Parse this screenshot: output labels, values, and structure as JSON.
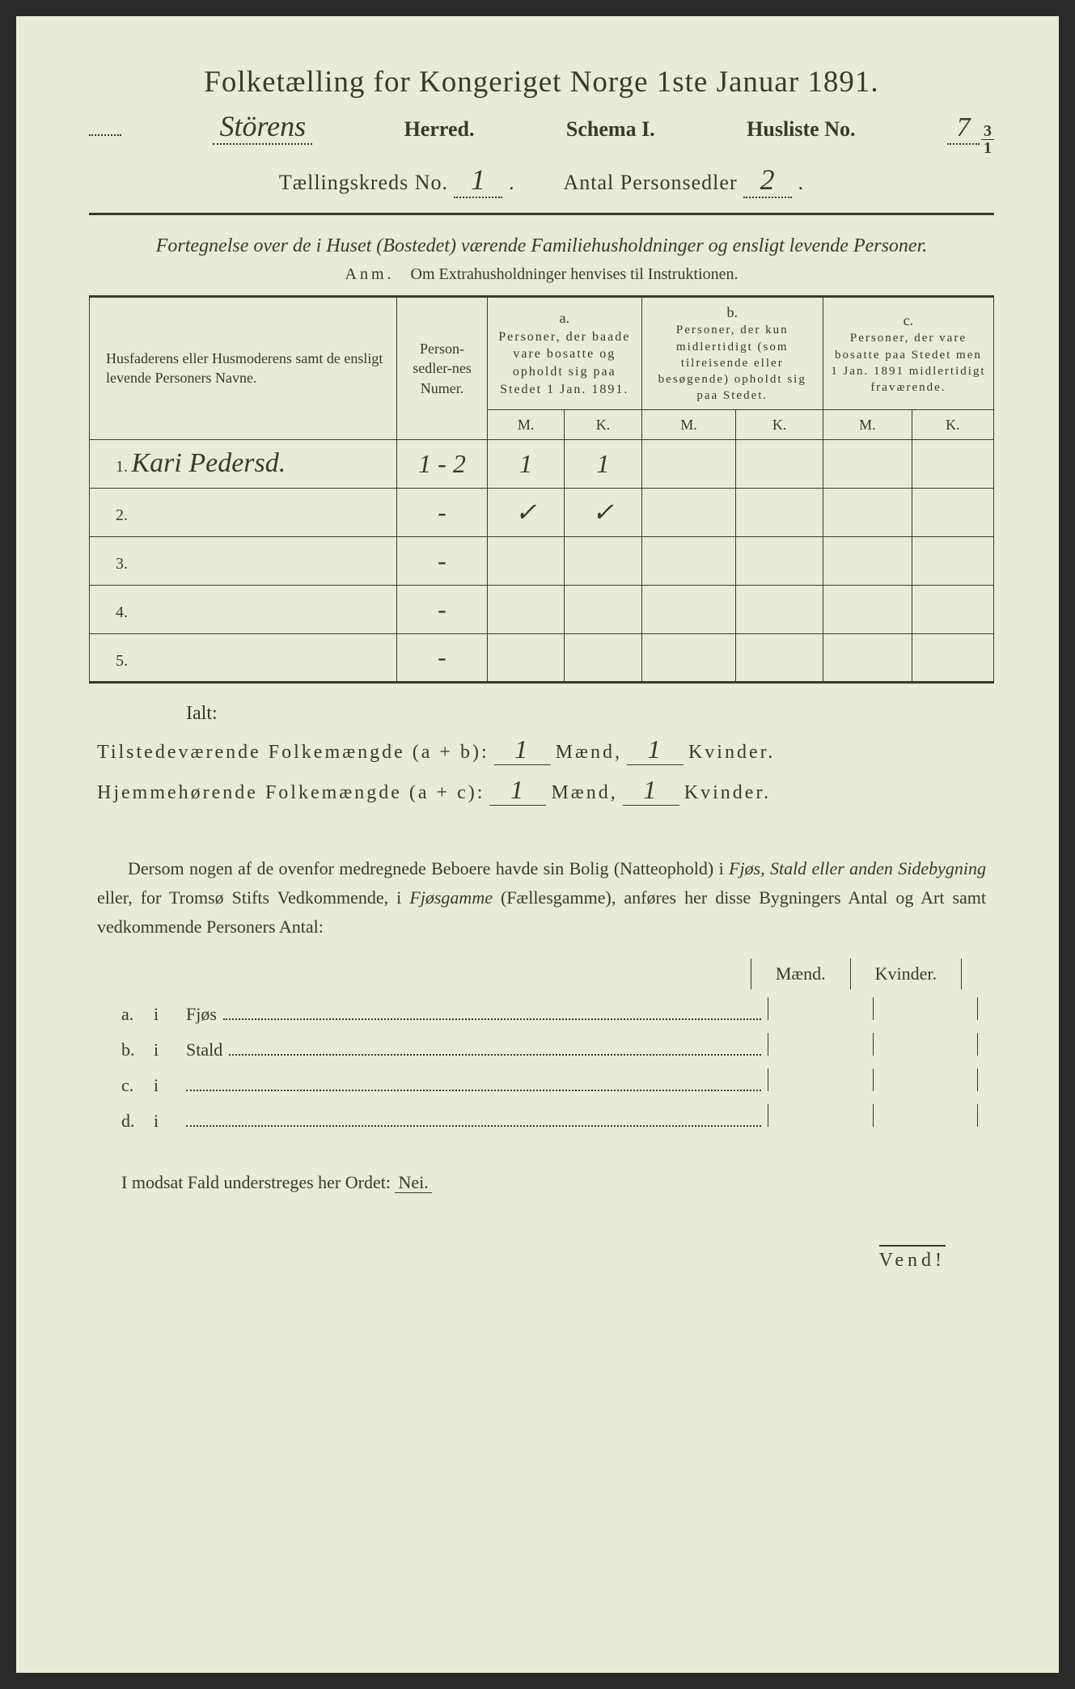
{
  "title": "Folketælling for Kongeriget Norge 1ste Januar 1891.",
  "herred_value": "Störens",
  "herred_label": "Herred.",
  "schema_label": "Schema I.",
  "husliste_label": "Husliste No.",
  "husliste_value": "7",
  "husliste_frac_num": "3",
  "husliste_frac_den": "1",
  "tkreds_label": "Tællingskreds No.",
  "tkreds_value": "1",
  "antal_label": "Antal Personsedler",
  "antal_value": "2",
  "subtitle": "Fortegnelse over de i Huset (Bostedet) værende Familiehusholdninger og ensligt levende Personer.",
  "anm_label": "Anm.",
  "anm_text": "Om Extrahusholdninger henvises til Instruktionen.",
  "thead": {
    "navne": "Husfaderens eller Husmoderens samt de ensligt levende Personers Navne.",
    "numer": "Person-sedler-nes Numer.",
    "a_label": "a.",
    "a_text": "Personer, der baade vare bosatte og opholdt sig paa Stedet 1 Jan. 1891.",
    "b_label": "b.",
    "b_text": "Personer, der kun midlertidigt (som tilreisende eller besøgende) opholdt sig paa Stedet.",
    "c_label": "c.",
    "c_text": "Personer, der vare bosatte paa Stedet men 1 Jan. 1891 midlertidigt fraværende.",
    "M": "M.",
    "K": "K."
  },
  "rows": [
    {
      "n": "1.",
      "name": "Kari Pedersd.",
      "numer": "1 - 2",
      "aM": "1",
      "aK": "1",
      "bM": "",
      "bK": "",
      "cM": "",
      "cK": ""
    },
    {
      "n": "2.",
      "name": "",
      "numer": "-",
      "aM": "✓",
      "aK": "✓",
      "bM": "",
      "bK": "",
      "cM": "",
      "cK": ""
    },
    {
      "n": "3.",
      "name": "",
      "numer": "-",
      "aM": "",
      "aK": "",
      "bM": "",
      "bK": "",
      "cM": "",
      "cK": ""
    },
    {
      "n": "4.",
      "name": "",
      "numer": "-",
      "aM": "",
      "aK": "",
      "bM": "",
      "bK": "",
      "cM": "",
      "cK": ""
    },
    {
      "n": "5.",
      "name": "",
      "numer": "-",
      "aM": "",
      "aK": "",
      "bM": "",
      "bK": "",
      "cM": "",
      "cK": ""
    }
  ],
  "ialt": "Ialt:",
  "totals": {
    "t1_label": "Tilstedeværende Folkemængde (a + b):",
    "t2_label": "Hjemmehørende Folkemængde (a + c):",
    "maend": "Mænd,",
    "kvinder": "Kvinder.",
    "t1_m": "1",
    "t1_k": "1",
    "t2_m": "1",
    "t2_k": "1"
  },
  "para": "Dersom nogen af de ovenfor medregnede Beboere havde sin Bolig (Natteophold) i Fjøs, Stald eller anden Sidebygning eller, for Tromsø Stifts Vedkommende, i Fjøsgamme (Fællesgamme), anføres her disse Bygningers Antal og Art samt vedkommende Personers Antal:",
  "mk": {
    "m": "Mænd.",
    "k": "Kvinder."
  },
  "sub": {
    "a": "a.",
    "b": "b.",
    "c": "c.",
    "d": "d.",
    "i": "i",
    "fjos": "Fjøs",
    "stald": "Stald"
  },
  "nei_line_pre": "I modsat Fald understreges her Ordet:",
  "nei": "Nei.",
  "vend": "Vend!",
  "colors": {
    "paper": "#e8ebd5",
    "ink": "#3a3a2a"
  }
}
